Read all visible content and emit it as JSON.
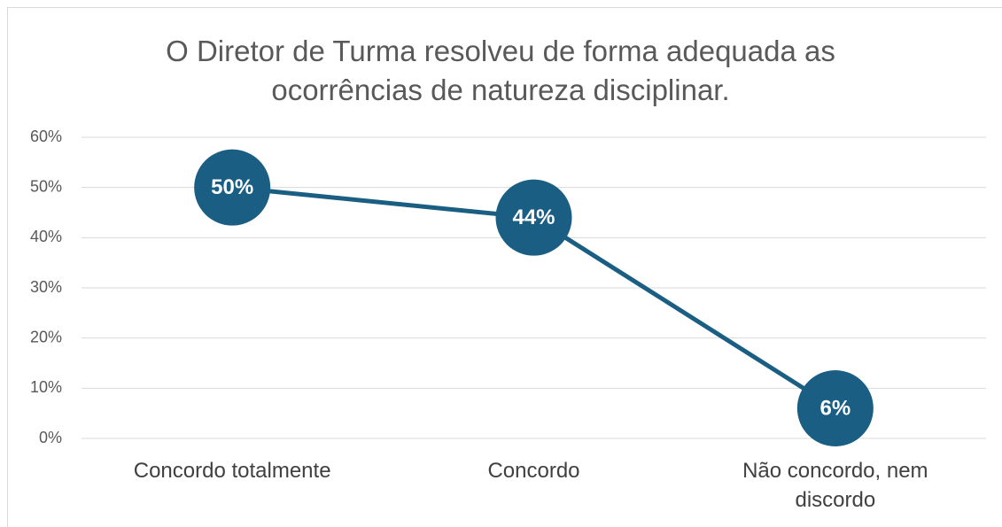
{
  "chart_data": {
    "type": "line",
    "title": "O Diretor de Turma resolveu de forma adequada as ocorrências de natureza disciplinar.",
    "categories": [
      "Concordo totalmente",
      "Concordo",
      "Não concordo, nem discordo"
    ],
    "values": [
      50,
      44,
      6
    ],
    "value_labels": [
      "50%",
      "44%",
      "6%"
    ],
    "color": "#1a5e83",
    "ylim": [
      0,
      60
    ],
    "yticks": [
      {
        "value": 0,
        "label": "0%"
      },
      {
        "value": 10,
        "label": "10%"
      },
      {
        "value": 20,
        "label": "20%"
      },
      {
        "value": 30,
        "label": "30%"
      },
      {
        "value": 40,
        "label": "40%"
      },
      {
        "value": 50,
        "label": "50%"
      },
      {
        "value": 60,
        "label": "60%"
      }
    ],
    "grid": true
  }
}
